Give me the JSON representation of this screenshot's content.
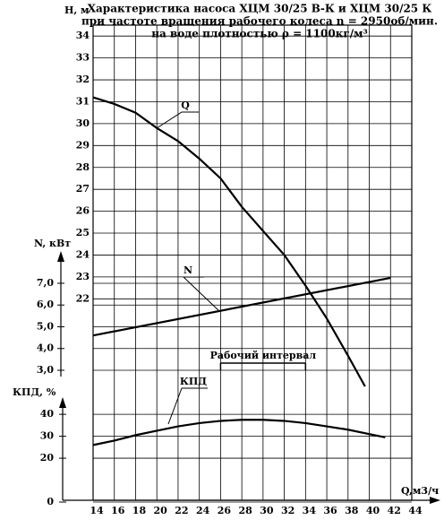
{
  "chart_data": {
    "type": "line",
    "title": [
      "Характеристика насоса ХЦМ 30/25 В-К и ХЦМ 30/25 К",
      "при частоте вращения рабочего колеса n = 2950об/мин.",
      "на воде плотностью ρ = 1100кг/м³"
    ],
    "x_label": "Q,м3/ч",
    "y_label": "H, м",
    "y2_label": "N, кВт",
    "y3_label": "КПД, %",
    "xlim": [
      14,
      44
    ],
    "xticks": [
      14,
      16,
      18,
      20,
      22,
      24,
      26,
      28,
      30,
      32,
      34,
      36,
      38,
      40,
      42,
      44
    ],
    "ylim": [
      12.8,
      34.5
    ],
    "yticks": [
      22,
      23,
      24,
      25,
      26,
      27,
      28,
      29,
      30,
      31,
      32,
      33,
      34
    ],
    "y2lim": [
      3,
      8.4
    ],
    "y2ticks": [
      {
        "value": 3,
        "label": "3,0"
      },
      {
        "value": 4,
        "label": "4,0"
      },
      {
        "value": 5,
        "label": "5,0"
      },
      {
        "value": 6,
        "label": "6,0"
      },
      {
        "value": 7,
        "label": "7,0"
      }
    ],
    "y3lim": [
      0,
      47
    ],
    "y3ticks": [
      0,
      20,
      30,
      40
    ],
    "grid": true,
    "series": [
      {
        "name": "Q",
        "color": "#000000",
        "axis": "y",
        "x": [
          14,
          16,
          18,
          20,
          22,
          24,
          26,
          28,
          30,
          32,
          34,
          36,
          38,
          39.6
        ],
        "values": [
          31.2,
          30.9,
          30.5,
          29.8,
          29.2,
          28.4,
          27.5,
          26.2,
          25.1,
          24.0,
          22.6,
          21.1,
          19.4,
          18.0
        ]
      },
      {
        "name": "N",
        "color": "#000000",
        "axis": "y2",
        "x": [
          14,
          42
        ],
        "values": [
          4.6,
          7.25
        ]
      },
      {
        "name": "КПД",
        "color": "#000000",
        "axis": "y3",
        "x": [
          14,
          16,
          18,
          20,
          22,
          24,
          26,
          28,
          30,
          32,
          34,
          36,
          38,
          40,
          41.5
        ],
        "values": [
          26,
          28,
          30.5,
          32.5,
          34.5,
          36,
          37,
          37.5,
          37.5,
          37,
          36,
          34.5,
          33,
          31,
          29.5
        ]
      }
    ],
    "interval": {
      "label": "Рабочий интервал",
      "x": [
        26,
        34
      ]
    }
  }
}
